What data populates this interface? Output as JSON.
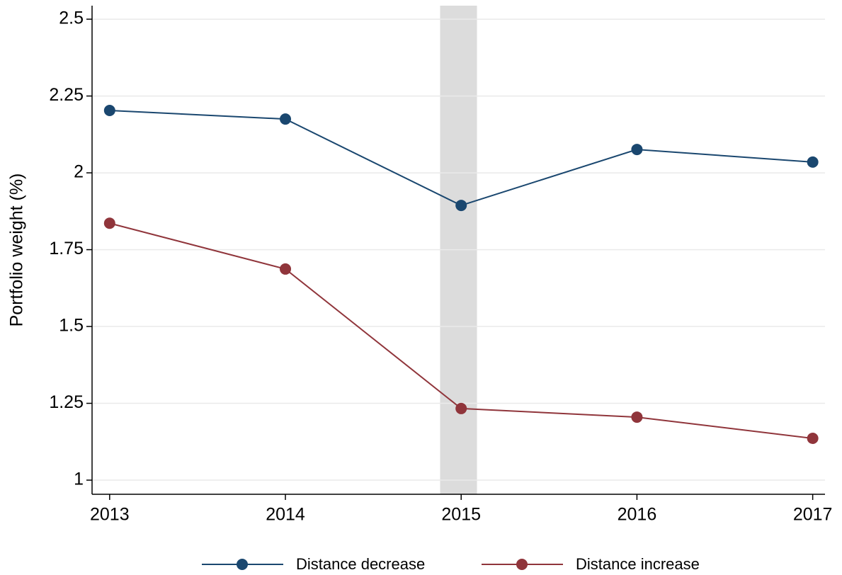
{
  "chart_data": {
    "type": "line",
    "y_label": "Portfolio weight (%)",
    "x": [
      2013,
      2014,
      2015,
      2016,
      2017
    ],
    "series": [
      {
        "name": "Distance decrease",
        "color": "#1a476f",
        "values": [
          2.203,
          2.175,
          1.894,
          2.076,
          2.035
        ]
      },
      {
        "name": "Distance increase",
        "color": "#90353b",
        "values": [
          1.836,
          1.687,
          1.233,
          1.205,
          1.136
        ]
      }
    ],
    "xlim": [
      2012.9,
      2017.07
    ],
    "xticks": [
      2013,
      2014,
      2015,
      2016,
      2017
    ],
    "ylim": [
      0.954,
      2.544
    ],
    "yticks": [
      1,
      1.25,
      1.5,
      1.75,
      2,
      2.25,
      2.5
    ],
    "highlight_x": [
      2014.88,
      2015.09
    ],
    "highlight_color": "#dcdcdc",
    "grid": true,
    "legend": "bottom"
  }
}
